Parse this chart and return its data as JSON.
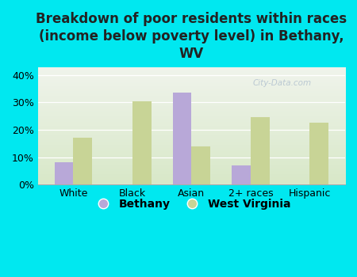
{
  "title": "Breakdown of poor residents within races\n(income below poverty level) in Bethany,\nWV",
  "categories": [
    "White",
    "Black",
    "Asian",
    "2+ races",
    "Hispanic"
  ],
  "bethany_values": [
    8.0,
    0.0,
    33.5,
    7.0,
    0.0
  ],
  "wv_values": [
    17.0,
    30.5,
    14.0,
    24.5,
    22.5
  ],
  "bethany_color": "#b8a8d8",
  "wv_color": "#c8d496",
  "background_color": "#00e8f0",
  "plot_bg_top": "#f0f4ec",
  "plot_bg_bottom": "#d8e8c8",
  "ylim": [
    0,
    43
  ],
  "yticks": [
    0,
    10,
    20,
    30,
    40
  ],
  "ytick_labels": [
    "0%",
    "10%",
    "20%",
    "30%",
    "40%"
  ],
  "bar_width": 0.32,
  "title_fontsize": 12,
  "tick_fontsize": 9,
  "legend_fontsize": 10,
  "title_color": "#222222"
}
